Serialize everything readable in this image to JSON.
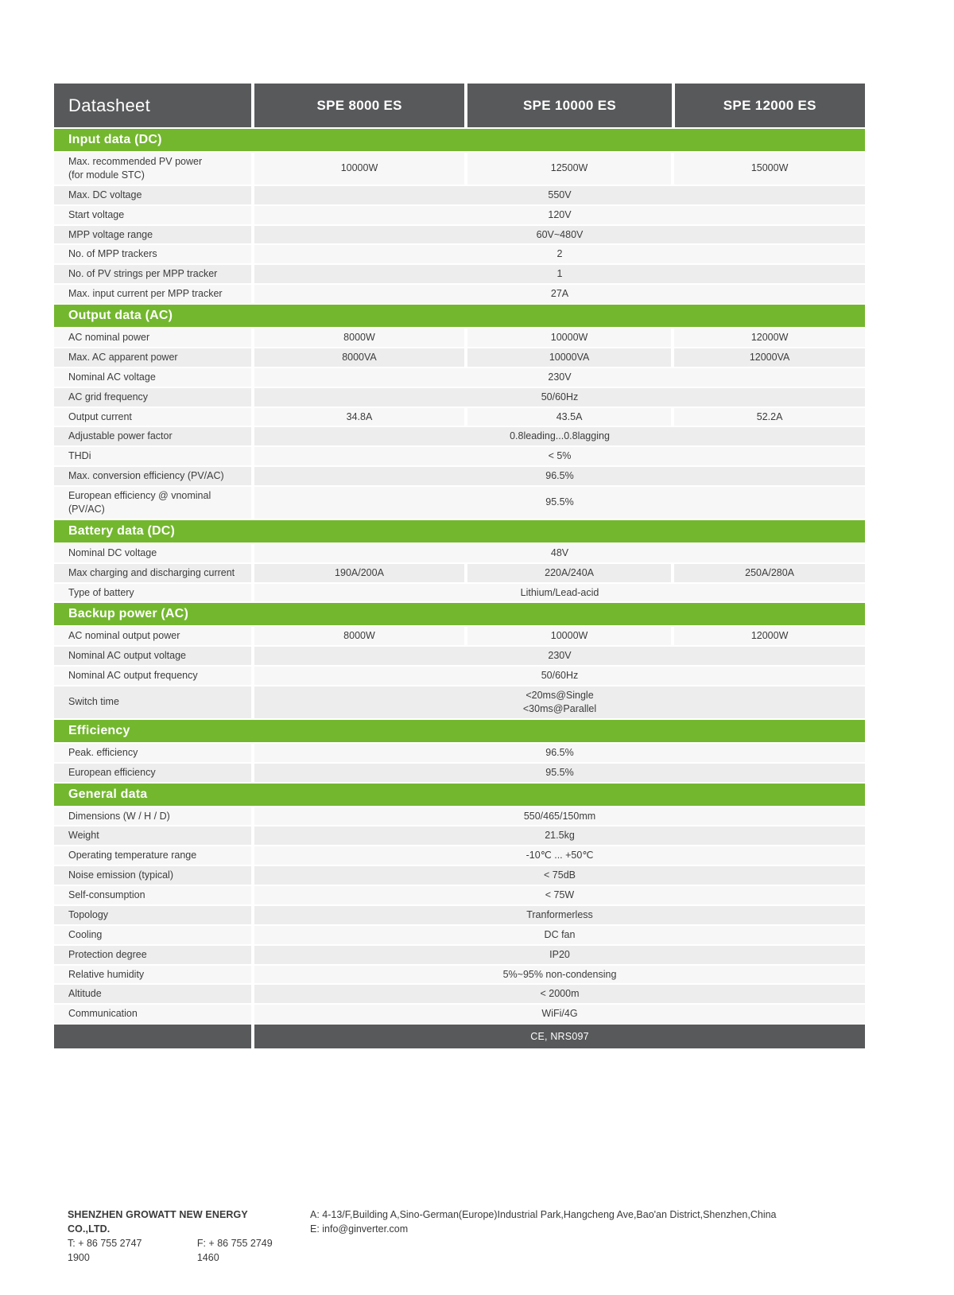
{
  "header": {
    "title": "Datasheet",
    "models": [
      "SPE 8000 ES",
      "SPE 10000 ES",
      "SPE 12000 ES"
    ]
  },
  "sections": [
    {
      "title": "Input data (DC)",
      "rows": [
        {
          "label": "Max. recommended PV power\n(for module STC)",
          "values": [
            "10000W",
            "12500W",
            "15000W"
          ]
        },
        {
          "label": "Max. DC voltage",
          "value": "550V"
        },
        {
          "label": "Start voltage",
          "value": "120V"
        },
        {
          "label": "MPP voltage range",
          "value": "60V~480V"
        },
        {
          "label": "No. of MPP trackers",
          "value": "2"
        },
        {
          "label": "No. of PV strings per MPP tracker",
          "value": "1"
        },
        {
          "label": "Max. input current per MPP tracker",
          "value": "27A"
        }
      ]
    },
    {
      "title": "Output data (AC)",
      "rows": [
        {
          "label": "AC nominal power",
          "values": [
            "8000W",
            "10000W",
            "12000W"
          ]
        },
        {
          "label": "Max. AC apparent power",
          "values": [
            "8000VA",
            "10000VA",
            "12000VA"
          ]
        },
        {
          "label": "Nominal AC voltage",
          "value": "230V"
        },
        {
          "label": "AC grid frequency",
          "value": "50/60Hz"
        },
        {
          "label": "Output current",
          "values": [
            "34.8A",
            "43.5A",
            "52.2A"
          ]
        },
        {
          "label": "Adjustable power factor",
          "value": "0.8leading...0.8lagging"
        },
        {
          "label": "THDi",
          "value": "< 5%"
        },
        {
          "label": "Max. conversion efficiency (PV/AC)",
          "value": "96.5%"
        },
        {
          "label": "European efficiency @ vnominal (PV/AC)",
          "value": "95.5%"
        }
      ]
    },
    {
      "title": "Battery data (DC)",
      "rows": [
        {
          "label": "Nominal DC voltage",
          "value": "48V"
        },
        {
          "label": "Max charging and discharging current",
          "values": [
            "190A/200A",
            "220A/240A",
            "250A/280A"
          ]
        },
        {
          "label": "Type of battery",
          "value": "Lithium/Lead-acid"
        }
      ]
    },
    {
      "title": "Backup power (AC)",
      "rows": [
        {
          "label": "AC nominal output power",
          "values": [
            "8000W",
            "10000W",
            "12000W"
          ]
        },
        {
          "label": "Nominal AC output voltage",
          "value": "230V"
        },
        {
          "label": "Nominal AC output frequency",
          "value": "50/60Hz"
        },
        {
          "label": "Switch time",
          "value": "<20ms@Single\n<30ms@Parallel"
        }
      ]
    },
    {
      "title": "Efficiency",
      "rows": [
        {
          "label": "Peak. efficiency",
          "value": "96.5%"
        },
        {
          "label": "European efficiency",
          "value": "95.5%"
        }
      ]
    },
    {
      "title": "General data",
      "rows": [
        {
          "label": "Dimensions (W / H / D)",
          "value": "550/465/150mm"
        },
        {
          "label": "Weight",
          "value": "21.5kg"
        },
        {
          "label": "Operating temperature range",
          "value": "-10℃ ... +50℃"
        },
        {
          "label": "Noise emission  (typical)",
          "value": "< 75dB"
        },
        {
          "label": "Self-consumption",
          "value": "< 75W"
        },
        {
          "label": "Topology",
          "value": "Tranformerless"
        },
        {
          "label": "Cooling",
          "value": "DC fan"
        },
        {
          "label": "Protection degree",
          "value": "IP20"
        },
        {
          "label": "Relative humidity",
          "value": "5%~95% non-condensing"
        },
        {
          "label": "Altitude",
          "value": "< 2000m"
        },
        {
          "label": "Communication",
          "value": "WiFi/4G"
        }
      ]
    }
  ],
  "certification": "CE, NRS097",
  "footer": {
    "company": "SHENZHEN GROWATT NEW ENERGY CO.,LTD.",
    "phone": "T:  + 86 755 2747 1900",
    "fax": "F:  + 86 755 2749 1460",
    "address": "A: 4-13/F,Building A,Sino-German(Europe)Industrial Park,Hangcheng Ave,Bao'an District,Shenzhen,China",
    "email": "E:  info@ginverter.com"
  },
  "colors": {
    "green": "#73B72E",
    "dark_gray": "#58595B",
    "stripe_light": "#F7F7F7",
    "stripe_dark": "#EDEDED"
  }
}
